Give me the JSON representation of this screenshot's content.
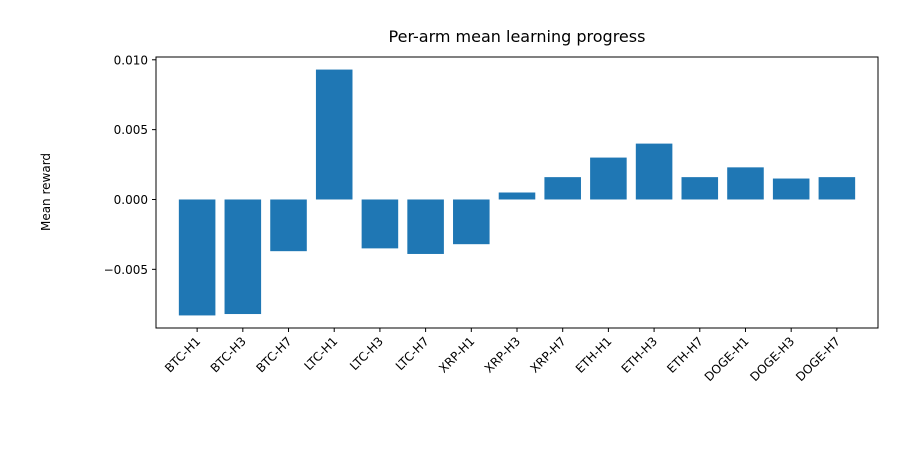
{
  "chart_data": {
    "type": "bar",
    "title": "Per-arm mean learning progress",
    "xlabel": "",
    "ylabel": "Mean reward",
    "categories": [
      "BTC-H1",
      "BTC-H3",
      "BTC-H7",
      "LTC-H1",
      "LTC-H3",
      "LTC-H7",
      "XRP-H1",
      "XRP-H3",
      "XRP-H7",
      "ETH-H1",
      "ETH-H3",
      "ETH-H7",
      "DOGE-H1",
      "DOGE-H3",
      "DOGE-H7"
    ],
    "values": [
      -0.0083,
      -0.0082,
      -0.0037,
      0.0093,
      -0.0035,
      -0.0039,
      -0.0032,
      0.0005,
      0.0016,
      0.003,
      0.004,
      0.0016,
      0.0023,
      0.0015,
      0.0016
    ],
    "ylim": [
      -0.0092,
      0.0102
    ],
    "yticks": [
      0.01,
      0.005,
      0.0,
      -0.005
    ],
    "ytick_labels": [
      "0.010",
      "0.005",
      "0.000",
      "−0.005"
    ],
    "bar_color": "#1f77b4",
    "grid": false,
    "legend": "none"
  }
}
